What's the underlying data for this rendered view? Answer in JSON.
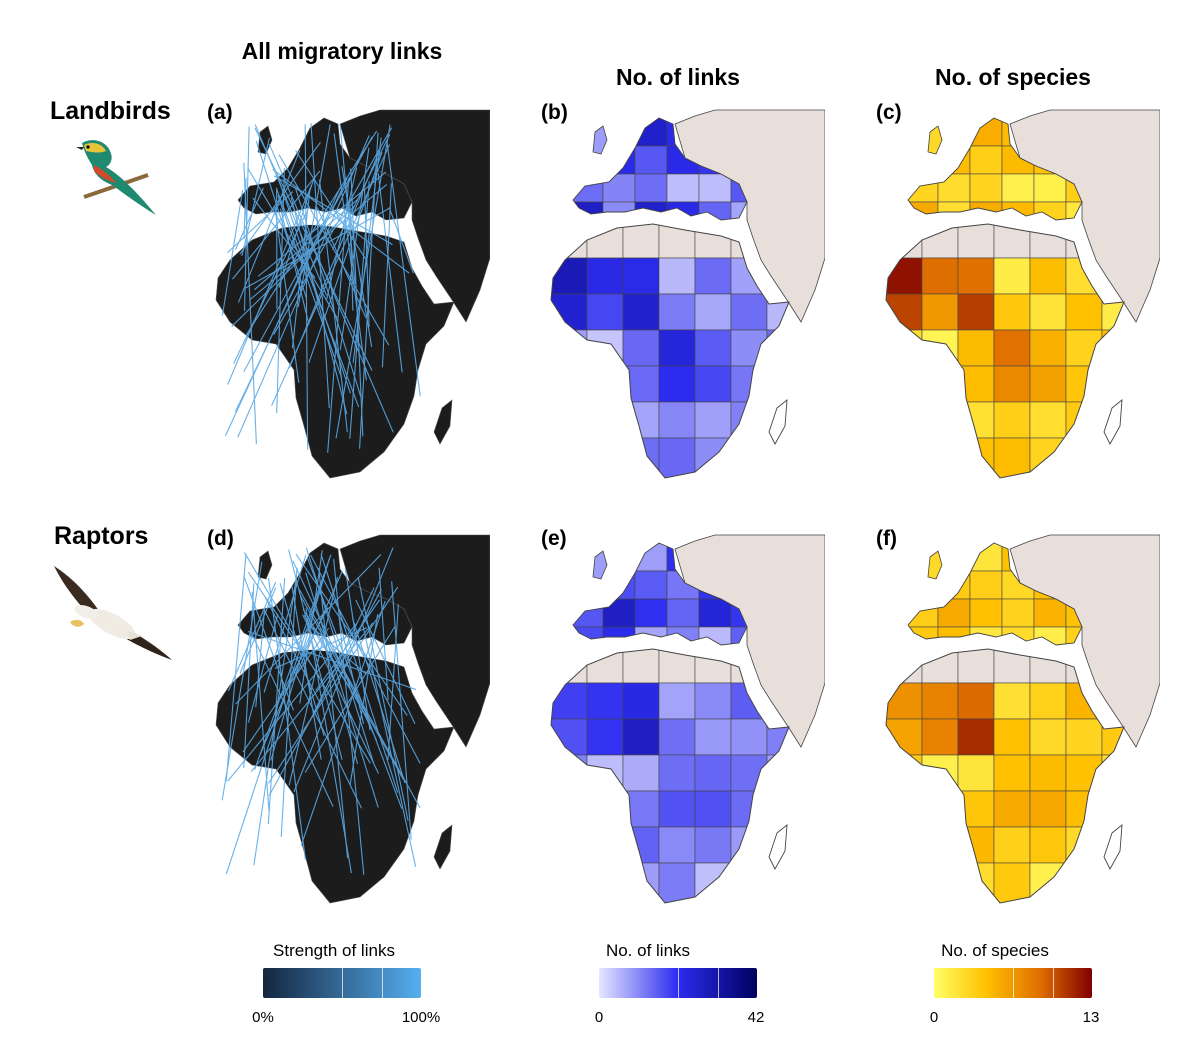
{
  "columns": {
    "all_links": "All migratory links",
    "n_links": "No. of links",
    "n_species": "No. of species"
  },
  "rows": {
    "landbirds": "Landbirds",
    "raptors": "Raptors"
  },
  "panels": [
    "(a)",
    "(b)",
    "(c)",
    "(d)",
    "(e)",
    "(f)"
  ],
  "legends": {
    "strength": {
      "title": "Strength of links",
      "min": "0%",
      "max": "100%",
      "colors": [
        "#14263f",
        "#56aef0"
      ]
    },
    "links": {
      "title": "No. of links",
      "min": "0",
      "max": "42",
      "colors": [
        "#e6e6ff",
        "#2c2cf0",
        "#00005e"
      ]
    },
    "species": {
      "title": "No. of species",
      "min": "0",
      "max": "13",
      "colors": [
        "#ffff66",
        "#ffc000",
        "#e07000",
        "#800000"
      ]
    }
  },
  "colors": {
    "dark_map": "#1c1c1c",
    "no_data": "#e8dfda",
    "link_line": "#5aa9e6",
    "border": "#444444"
  }
}
